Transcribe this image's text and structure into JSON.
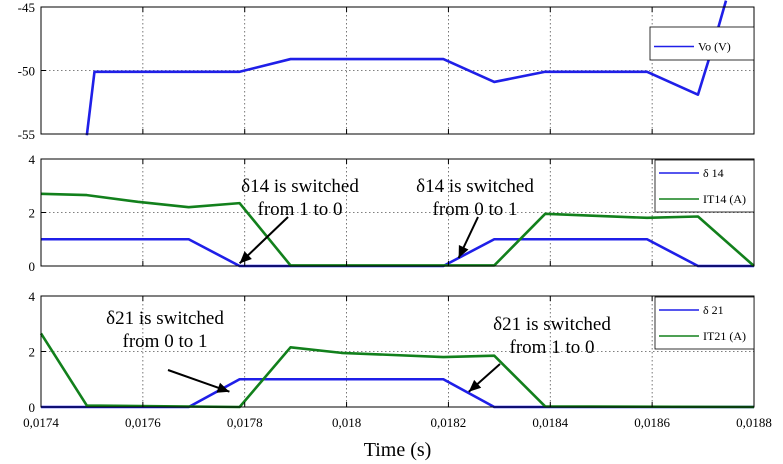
{
  "chart_data": [
    {
      "type": "line",
      "xlim": [
        0.0174,
        0.0188
      ],
      "ylim": [
        -55,
        -45
      ],
      "yticks": [
        -55,
        -50,
        -45
      ],
      "ytick_labels": [
        "-55",
        "-50",
        "-45"
      ],
      "grid": true,
      "legend_position": "top-right",
      "series": [
        {
          "name": "Vo (V)",
          "color": "#1f1fe8",
          "x": [
            0.01749,
            0.017505,
            0.01779,
            0.01789,
            0.01819,
            0.01829,
            0.01839,
            0.01859,
            0.01869,
            0.01872,
            0.018745
          ],
          "y": [
            -55.1,
            -50.1,
            -50.1,
            -49.1,
            -49.1,
            -50.9,
            -50.1,
            -50.1,
            -51.9,
            -48.0,
            -44.5
          ]
        }
      ]
    },
    {
      "type": "line",
      "xlim": [
        0.0174,
        0.0188
      ],
      "ylim": [
        0,
        4
      ],
      "yticks": [
        0,
        2,
        4
      ],
      "ytick_labels": [
        "0",
        "2",
        "4"
      ],
      "grid": true,
      "legend_position": "top-right",
      "series": [
        {
          "name": "δ 14",
          "color": "#1f1fe8",
          "x": [
            0.0174,
            0.01769,
            0.01779,
            0.01819,
            0.01829,
            0.01859,
            0.01869,
            0.0188
          ],
          "y": [
            1,
            1,
            0,
            0,
            1,
            1,
            0,
            0
          ]
        },
        {
          "name": "IT14 (A)",
          "color": "#12801c",
          "x": [
            0.0174,
            0.01749,
            0.01759,
            0.01769,
            0.01779,
            0.01789,
            0.01829,
            0.01839,
            0.01859,
            0.01869,
            0.0188
          ],
          "y": [
            2.7,
            2.65,
            2.4,
            2.2,
            2.35,
            0.02,
            0.02,
            1.95,
            1.8,
            1.85,
            0
          ]
        }
      ],
      "annotations": [
        {
          "text_lines": [
            "δ14 is switched",
            "from 1 to 0"
          ],
          "x": 0.01779,
          "y": 0.1
        },
        {
          "text_lines": [
            "δ14 is switched",
            "from 0 to 1"
          ],
          "x": 0.01822,
          "y": 0.3
        }
      ]
    },
    {
      "type": "line",
      "xlim": [
        0.0174,
        0.0188
      ],
      "ylim": [
        0,
        4
      ],
      "yticks": [
        0,
        2,
        4
      ],
      "ytick_labels": [
        "0",
        "2",
        "4"
      ],
      "xticks": [
        0.0174,
        0.0176,
        0.0178,
        0.018,
        0.0182,
        0.0184,
        0.0186,
        0.0188
      ],
      "xtick_labels": [
        "0,0174",
        "0,0176",
        "0,0178",
        "0,018",
        "0,0182",
        "0,0184",
        "0,0186",
        "0,0188"
      ],
      "xlabel": "Time (s)",
      "grid": true,
      "legend_position": "top-right",
      "series": [
        {
          "name": "δ 21",
          "color": "#1f1fe8",
          "x": [
            0.0174,
            0.01769,
            0.01779,
            0.01819,
            0.01829,
            0.0188
          ],
          "y": [
            0,
            0,
            1,
            1,
            0,
            0
          ]
        },
        {
          "name": "IT21 (A)",
          "color": "#12801c",
          "x": [
            0.0174,
            0.01749,
            0.01779,
            0.01789,
            0.01799,
            0.01819,
            0.01829,
            0.01839,
            0.0188
          ],
          "y": [
            2.65,
            0.05,
            0,
            2.15,
            1.95,
            1.8,
            1.85,
            0.02,
            0
          ]
        }
      ],
      "annotations": [
        {
          "text_lines": [
            "δ21 is switched",
            "from 0 to 1"
          ],
          "x": 0.01777,
          "y": 0.55
        },
        {
          "text_lines": [
            "δ21 is switched",
            "from 1 to 0"
          ],
          "x": 0.01824,
          "y": 0.55
        }
      ]
    }
  ]
}
